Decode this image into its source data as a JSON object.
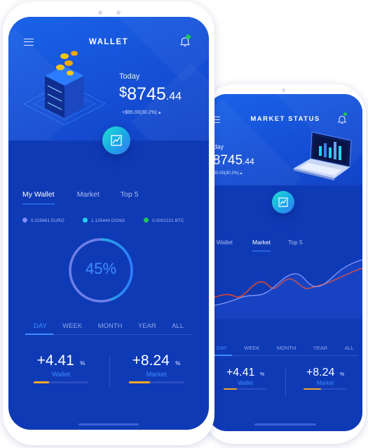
{
  "front": {
    "title": "WALLET",
    "today_label": "Today",
    "balance": {
      "currency": "$",
      "integer": "8745",
      "decimal": ".44"
    },
    "change": "+$95.00(30.2%)",
    "tabs": [
      {
        "label": "My Wallet",
        "active": true
      },
      {
        "label": "Market",
        "active": false
      },
      {
        "label": "Top 5",
        "active": false
      }
    ],
    "currencies": [
      {
        "label": "0.225661 EURO",
        "color": "#7c8cf8"
      },
      {
        "label": "1.125444 DONG",
        "color": "#22d3ee"
      },
      {
        "label": "0.0001221 BTC",
        "color": "#22c55e"
      }
    ],
    "progress": {
      "label": "45%",
      "value": 0.45
    },
    "periods": [
      "DAY",
      "WEEK",
      "MONTH",
      "YEAR",
      "ALL"
    ],
    "active_period": "DAY",
    "stats": [
      {
        "value": "+4.41",
        "unit": "%",
        "label": "Wallet"
      },
      {
        "value": "+8.24",
        "unit": "%",
        "label": "Market"
      }
    ]
  },
  "back": {
    "title": "MARKET STATUS",
    "today_label": "Today",
    "balance": {
      "currency": "$",
      "integer": "8745",
      "decimal": ".44"
    },
    "change": "+$95.00(30.2%)",
    "tabs": [
      {
        "label": "My Wallet",
        "active": false
      },
      {
        "label": "Market",
        "active": true
      },
      {
        "label": "Top 5",
        "active": false
      }
    ],
    "periods": [
      "DAY",
      "WEEK",
      "MONTH",
      "YEAR",
      "ALL"
    ],
    "active_period": "DAY",
    "stats": [
      {
        "value": "+4.41",
        "unit": "%",
        "label": "Wallet"
      },
      {
        "value": "+8.24",
        "unit": "%",
        "label": "Market"
      }
    ]
  },
  "colors": {
    "screen_bg": "#0f3ab6",
    "hero_bg": "#1a5ae3",
    "accent_blue": "#3f8dff",
    "accent_orange": "#f5a623",
    "line_red": "#e0472e",
    "line_light": "#9aa8ff"
  }
}
